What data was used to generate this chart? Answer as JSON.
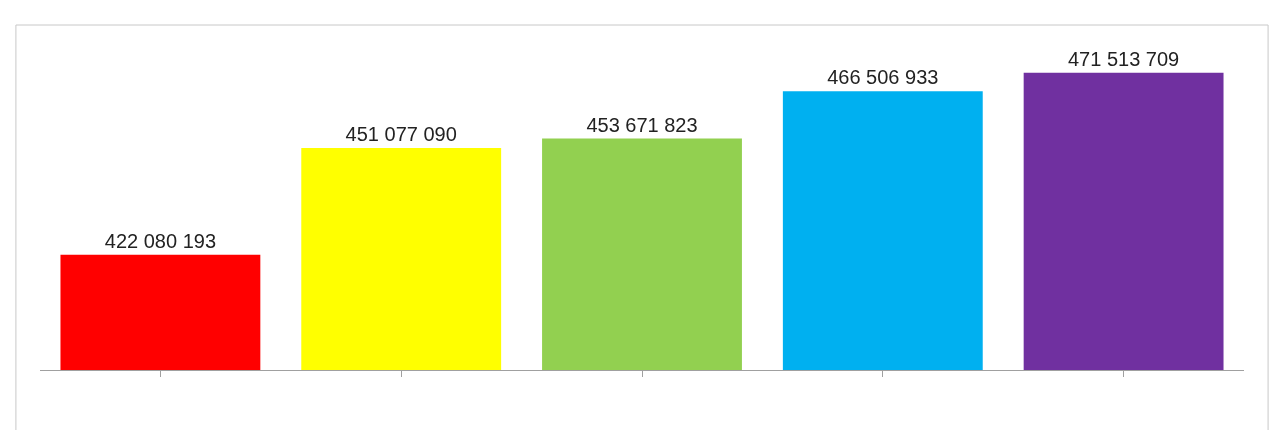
{
  "chart_data": {
    "type": "bar",
    "categories": [
      null,
      null,
      null,
      null,
      null
    ],
    "values": [
      422080193,
      451077090,
      453671823,
      466506933,
      471513709
    ],
    "colors": [
      "#ff0000",
      "#ffff00",
      "#92d050",
      "#00b0f0",
      "#7030a0"
    ],
    "ylim": [
      390800000,
      484500000
    ],
    "data_labels": true
  }
}
